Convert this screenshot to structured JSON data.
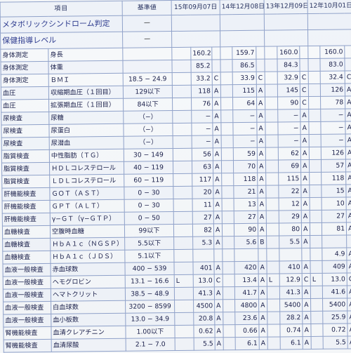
{
  "header": {
    "item": "項目",
    "reference": "基準値",
    "dates": [
      "15年09月07日",
      "14年12月08日",
      "13年12月09日",
      "12年10月01日"
    ]
  },
  "special_rows": [
    {
      "label": "メタボリックシンドローム判定",
      "ref": "－"
    },
    {
      "label": "保健指導レベル",
      "ref": "－"
    }
  ],
  "rows": [
    {
      "cat": "身体測定",
      "name": "身長",
      "ref": "",
      "v": [
        [
          "",
          "160.2",
          ""
        ],
        [
          "",
          "159.7",
          ""
        ],
        [
          "",
          "160.0",
          ""
        ],
        [
          "",
          "160.0",
          ""
        ]
      ]
    },
    {
      "cat": "身体測定",
      "name": "体重",
      "ref": "",
      "v": [
        [
          "",
          "85.2",
          ""
        ],
        [
          "",
          "86.5",
          ""
        ],
        [
          "",
          "84.3",
          ""
        ],
        [
          "",
          "83.0",
          ""
        ]
      ]
    },
    {
      "cat": "身体測定",
      "name": "ＢＭＩ",
      "ref": "18.5 − 24.9",
      "v": [
        [
          "",
          "33.2",
          "C"
        ],
        [
          "",
          "33.9",
          "C"
        ],
        [
          "",
          "32.9",
          "C"
        ],
        [
          "",
          "32.4",
          "C"
        ]
      ]
    },
    {
      "cat": "血圧",
      "name": "収縮期血圧（１回目）",
      "ref": "129以下",
      "v": [
        [
          "",
          "118",
          "A"
        ],
        [
          "",
          "115",
          "A"
        ],
        [
          "",
          "145",
          "C"
        ],
        [
          "",
          "126",
          "A"
        ]
      ]
    },
    {
      "cat": "血圧",
      "name": "拡張期血圧（１回目）",
      "ref": "84以下",
      "v": [
        [
          "",
          "76",
          "A"
        ],
        [
          "",
          "64",
          "A"
        ],
        [
          "",
          "90",
          "C"
        ],
        [
          "",
          "78",
          "A"
        ]
      ]
    },
    {
      "cat": "尿検査",
      "name": "尿糖",
      "ref": "（−）",
      "v": [
        [
          "",
          "−",
          "A"
        ],
        [
          "",
          "−",
          "A"
        ],
        [
          "",
          "−",
          "A"
        ],
        [
          "",
          "−",
          "A"
        ]
      ]
    },
    {
      "cat": "尿検査",
      "name": "尿蛋白",
      "ref": "（−）",
      "v": [
        [
          "",
          "−",
          "A"
        ],
        [
          "",
          "−",
          "A"
        ],
        [
          "",
          "−",
          "A"
        ],
        [
          "",
          "−",
          "A"
        ]
      ]
    },
    {
      "cat": "尿検査",
      "name": "尿潜血",
      "ref": "（−）",
      "v": [
        [
          "",
          "−",
          "A"
        ],
        [
          "",
          "−",
          "A"
        ],
        [
          "",
          "−",
          "A"
        ],
        [
          "",
          "−",
          "A"
        ]
      ]
    },
    {
      "cat": "脂質検査",
      "name": "中性脂肪（ＴＧ）",
      "ref": "30 − 149",
      "v": [
        [
          "",
          "56",
          "A"
        ],
        [
          "",
          "59",
          "A"
        ],
        [
          "",
          "62",
          "A"
        ],
        [
          "",
          "126",
          "A"
        ]
      ]
    },
    {
      "cat": "脂質検査",
      "name": "ＨＤＬコレステロール",
      "ref": "40 − 119",
      "v": [
        [
          "",
          "63",
          "A"
        ],
        [
          "",
          "70",
          "A"
        ],
        [
          "",
          "69",
          "A"
        ],
        [
          "",
          "57",
          "A"
        ]
      ]
    },
    {
      "cat": "脂質検査",
      "name": "ＬＤＬコレステロール",
      "ref": "60 − 119",
      "v": [
        [
          "",
          "117",
          "A"
        ],
        [
          "",
          "118",
          "A"
        ],
        [
          "",
          "115",
          "A"
        ],
        [
          "",
          "118",
          "A"
        ]
      ]
    },
    {
      "cat": "肝機能検査",
      "name": "ＧＯＴ（ＡＳＴ）",
      "ref": "0 − 30",
      "v": [
        [
          "",
          "20",
          "A"
        ],
        [
          "",
          "21",
          "A"
        ],
        [
          "",
          "22",
          "A"
        ],
        [
          "",
          "15",
          "A"
        ]
      ]
    },
    {
      "cat": "肝機能検査",
      "name": "ＧＰＴ（ＡＬＴ）",
      "ref": "0 − 30",
      "v": [
        [
          "",
          "11",
          "A"
        ],
        [
          "",
          "13",
          "A"
        ],
        [
          "",
          "12",
          "A"
        ],
        [
          "",
          "10",
          "A"
        ]
      ]
    },
    {
      "cat": "肝機能検査",
      "name": "γ−ＧＴ（γ−ＧＴＰ）",
      "ref": "0 − 50",
      "v": [
        [
          "",
          "27",
          "A"
        ],
        [
          "",
          "27",
          "A"
        ],
        [
          "",
          "29",
          "A"
        ],
        [
          "",
          "27",
          "A"
        ]
      ]
    },
    {
      "cat": "血糖検査",
      "name": "空腹時血糖",
      "ref": "99以下",
      "v": [
        [
          "",
          "82",
          "A"
        ],
        [
          "",
          "90",
          "A"
        ],
        [
          "",
          "80",
          "A"
        ],
        [
          "",
          "81",
          "A"
        ]
      ]
    },
    {
      "cat": "血糖検査",
      "name": "ＨｂＡ１ｃ（ＮＧＳＰ）",
      "ref": "5.5以下",
      "v": [
        [
          "",
          "5.3",
          "A H"
        ],
        [
          "",
          "5.6",
          "B"
        ],
        [
          "",
          "5.5",
          "A"
        ],
        [
          "",
          "",
          ""
        ]
      ]
    },
    {
      "cat": "血糖検査",
      "name": "ＨｂＡ１ｃ（ＪＤＳ）",
      "ref": "5.1以下",
      "v": [
        [
          "",
          "",
          ""
        ],
        [
          "",
          "",
          ""
        ],
        [
          "",
          "",
          ""
        ],
        [
          "",
          "4.9",
          "A"
        ]
      ]
    },
    {
      "cat": "血液一般検査",
      "name": "赤血球数",
      "ref": "400 − 539",
      "v": [
        [
          "",
          "401",
          "A"
        ],
        [
          "",
          "420",
          "A"
        ],
        [
          "",
          "410",
          "A"
        ],
        [
          "",
          "409",
          "A"
        ]
      ]
    },
    {
      "cat": "血液一般検査",
      "name": "ヘモグロビン",
      "ref": "13.1 − 16.6",
      "v": [
        [
          "L",
          "13.0",
          "C"
        ],
        [
          "",
          "13.4",
          "A"
        ],
        [
          "L",
          "12.9",
          "C"
        ],
        [
          "L",
          "13.0",
          "C"
        ]
      ]
    },
    {
      "cat": "血液一般検査",
      "name": "ヘマトクリット",
      "ref": "38.5 − 48.9",
      "v": [
        [
          "",
          "41.3",
          "A"
        ],
        [
          "",
          "41.7",
          "A"
        ],
        [
          "",
          "41.3",
          "A"
        ],
        [
          "",
          "41.6",
          "A"
        ]
      ]
    },
    {
      "cat": "血液一般検査",
      "name": "白血球数",
      "ref": "3200 − 8599",
      "v": [
        [
          "",
          "4500",
          "A"
        ],
        [
          "",
          "4800",
          "A"
        ],
        [
          "",
          "5400",
          "A"
        ],
        [
          "",
          "5400",
          "A"
        ]
      ]
    },
    {
      "cat": "血液一般検査",
      "name": "血小板数",
      "ref": "13.0 − 34.9",
      "v": [
        [
          "",
          "20.8",
          "A"
        ],
        [
          "",
          "23.6",
          "A"
        ],
        [
          "",
          "28.2",
          "A"
        ],
        [
          "",
          "25.9",
          "A"
        ]
      ]
    },
    {
      "cat": "腎機能検査",
      "name": "血清クレアチニン",
      "ref": "1.00以下",
      "v": [
        [
          "",
          "0.62",
          "A"
        ],
        [
          "",
          "0.66",
          "A"
        ],
        [
          "",
          "0.74",
          "A"
        ],
        [
          "",
          "0.72",
          "A"
        ]
      ]
    },
    {
      "cat": "腎機能検査",
      "name": "血清尿酸",
      "ref": "2.1 − 7.0",
      "v": [
        [
          "",
          "5.5",
          "A"
        ],
        [
          "",
          "6.1",
          "A"
        ],
        [
          "",
          "6.1",
          "A"
        ],
        [
          "",
          "5.5",
          "A"
        ]
      ]
    }
  ]
}
